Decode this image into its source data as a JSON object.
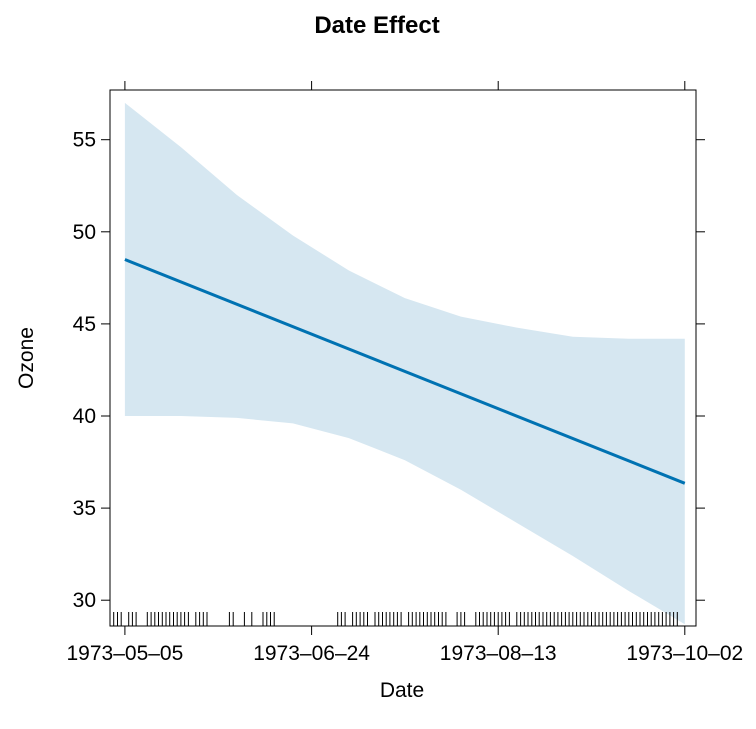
{
  "chart_data": {
    "type": "line",
    "title": "Date Effect",
    "xlabel": "Date",
    "ylabel": "Ozone",
    "x_ticks": [
      "1973–05–05",
      "1973–06–24",
      "1973–08–13",
      "1973–10–02"
    ],
    "y_ticks": [
      "30",
      "35",
      "40",
      "45",
      "50",
      "55"
    ],
    "xlim": [
      "1973-05-01",
      "1973-10-05"
    ],
    "ylim": [
      28.6,
      57.7
    ],
    "series": [
      {
        "type": "line",
        "x": [
          "1973-05-05",
          "1973-10-02"
        ],
        "y": [
          48.5,
          36.35
        ],
        "color": "#0072b2"
      }
    ],
    "confidence_band": {
      "color": "#d6e7f1",
      "x": [
        "1973-05-05",
        "1973-05-20",
        "1973-06-04",
        "1973-06-19",
        "1973-07-04",
        "1973-07-19",
        "1973-08-03",
        "1973-08-18",
        "1973-09-02",
        "1973-09-17",
        "1973-10-02"
      ],
      "upper": [
        57.0,
        54.6,
        52.0,
        49.8,
        47.9,
        46.4,
        45.4,
        44.8,
        44.3,
        44.2,
        44.2
      ],
      "lower": [
        40.0,
        40.0,
        39.9,
        39.6,
        38.8,
        37.6,
        36.0,
        34.2,
        32.4,
        30.5,
        28.7
      ]
    },
    "rug": {
      "color": "#000000",
      "dates": [
        "1973-05-01",
        "1973-05-02",
        "1973-05-03",
        "1973-05-04",
        "1973-05-06",
        "1973-05-07",
        "1973-05-08",
        "1973-05-11",
        "1973-05-12",
        "1973-05-13",
        "1973-05-14",
        "1973-05-15",
        "1973-05-16",
        "1973-05-17",
        "1973-05-18",
        "1973-05-19",
        "1973-05-20",
        "1973-05-21",
        "1973-05-22",
        "1973-05-24",
        "1973-05-25",
        "1973-05-26",
        "1973-05-27",
        "1973-06-02",
        "1973-06-03",
        "1973-06-06",
        "1973-06-08",
        "1973-06-11",
        "1973-06-12",
        "1973-06-13",
        "1973-06-14",
        "1973-07-01",
        "1973-07-02",
        "1973-07-03",
        "1973-07-05",
        "1973-07-06",
        "1973-07-07",
        "1973-07-08",
        "1973-07-09",
        "1973-07-11",
        "1973-07-12",
        "1973-07-13",
        "1973-07-14",
        "1973-07-15",
        "1973-07-16",
        "1973-07-17",
        "1973-07-18",
        "1973-07-20",
        "1973-07-21",
        "1973-07-22",
        "1973-07-23",
        "1973-07-24",
        "1973-07-25",
        "1973-07-26",
        "1973-07-27",
        "1973-07-28",
        "1973-07-29",
        "1973-07-30",
        "1973-08-02",
        "1973-08-03",
        "1973-08-04",
        "1973-08-07",
        "1973-08-08",
        "1973-08-09",
        "1973-08-10",
        "1973-08-11",
        "1973-08-12",
        "1973-08-13",
        "1973-08-14",
        "1973-08-15",
        "1973-08-16",
        "1973-08-18",
        "1973-08-19",
        "1973-08-20",
        "1973-08-21",
        "1973-08-22",
        "1973-08-23",
        "1973-08-24",
        "1973-08-25",
        "1973-08-26",
        "1973-08-27",
        "1973-08-28",
        "1973-08-29",
        "1973-08-30",
        "1973-08-31",
        "1973-09-01",
        "1973-09-02",
        "1973-09-03",
        "1973-09-04",
        "1973-09-05",
        "1973-09-06",
        "1973-09-07",
        "1973-09-08",
        "1973-09-09",
        "1973-09-10",
        "1973-09-11",
        "1973-09-12",
        "1973-09-13",
        "1973-09-14",
        "1973-09-15",
        "1973-09-16",
        "1973-09-17",
        "1973-09-18",
        "1973-09-19",
        "1973-09-20",
        "1973-09-21",
        "1973-09-22",
        "1973-09-23",
        "1973-09-24",
        "1973-09-25",
        "1973-09-26",
        "1973-09-27",
        "1973-09-28",
        "1973-09-29",
        "1973-09-30"
      ]
    },
    "grid": false,
    "legend": "none"
  }
}
